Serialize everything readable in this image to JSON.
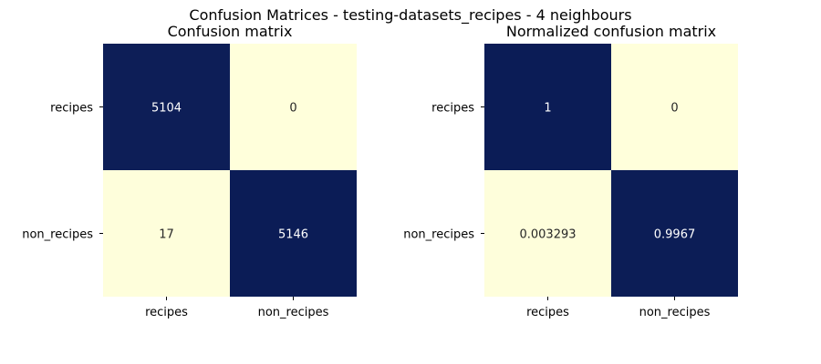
{
  "figure": {
    "suptitle": "Confusion Matrices - testing-datasets_recipes - 4 neighbours"
  },
  "colors": {
    "high": "#0b1c56",
    "low": "#ffffdb",
    "text_on_high": "#ffffff",
    "text_on_low": "#262626"
  },
  "chart_data": [
    {
      "type": "heatmap",
      "title": "Confusion matrix",
      "row_labels": [
        "recipes",
        "non_recipes"
      ],
      "col_labels": [
        "recipes",
        "non_recipes"
      ],
      "values": [
        [
          5104,
          0
        ],
        [
          17,
          5146
        ]
      ],
      "annotations": [
        [
          "5104",
          "0"
        ],
        [
          "17",
          "5146"
        ]
      ],
      "colormap": "YlGnBu",
      "colorbar": false
    },
    {
      "type": "heatmap",
      "title": "Normalized confusion matrix",
      "row_labels": [
        "recipes",
        "non_recipes"
      ],
      "col_labels": [
        "recipes",
        "non_recipes"
      ],
      "values": [
        [
          1,
          0
        ],
        [
          0.003293,
          0.9967
        ]
      ],
      "annotations": [
        [
          "1",
          "0"
        ],
        [
          "0.003293",
          "0.9967"
        ]
      ],
      "colormap": "YlGnBu",
      "colorbar": false
    }
  ]
}
